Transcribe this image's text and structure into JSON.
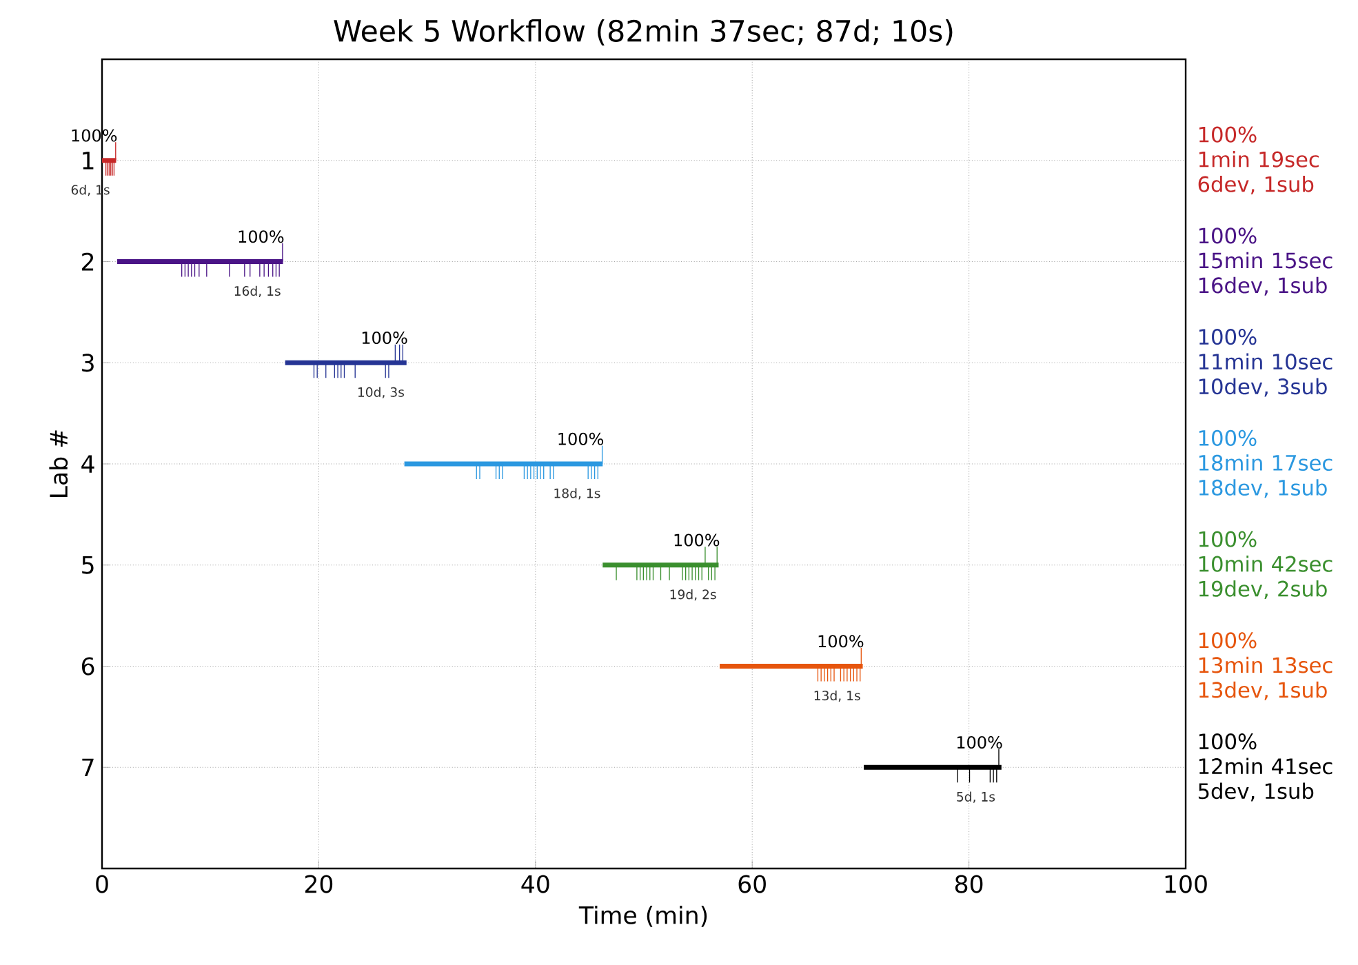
{
  "chart_data": {
    "type": "line",
    "title": "Week 5 Workflow (82min 37sec; 87d; 10s)",
    "xlabel": "Time (min)",
    "ylabel": "Lab #",
    "xlim": [
      0,
      100
    ],
    "xticks": [
      0,
      20,
      40,
      60,
      80,
      100
    ],
    "ylim": [
      8,
      0
    ],
    "yticks": [
      1,
      2,
      3,
      4,
      5,
      6,
      7
    ],
    "grid": true,
    "series": [
      {
        "name": "100%\n1min 19sec\n6dev, 1sub",
        "color": "#c62828",
        "x": [
          0.0,
          1.3
        ],
        "values": [
          1,
          1
        ]
      },
      {
        "type": "bar",
        "color": "#c62828",
        "x": [
          0.4,
          0.55,
          0.7,
          0.85,
          1.0,
          1.15
        ],
        "base": [
          1,
          1,
          1,
          1,
          1,
          1
        ],
        "values": [
          0.15,
          0.15,
          0.15,
          0.15,
          0.15,
          0.15
        ]
      },
      {
        "type": "bar",
        "color": "#c62828",
        "x": [
          1.3
        ],
        "base": [
          1
        ],
        "values": [
          -0.18
        ]
      },
      {
        "name": "100%\n15min 15sec\n16dev, 1sub",
        "color": "#4a1486",
        "x": [
          1.4,
          16.7
        ],
        "values": [
          2,
          2
        ]
      },
      {
        "type": "bar",
        "color": "#4a1486",
        "x": [
          7.4,
          7.7,
          8.0,
          8.3,
          8.6,
          9.0,
          9.7,
          11.8,
          13.2,
          13.7,
          14.6,
          15.0,
          15.4,
          15.8,
          16.1,
          16.4
        ],
        "base": [
          2,
          2,
          2,
          2,
          2,
          2,
          2,
          2,
          2,
          2,
          2,
          2,
          2,
          2,
          2,
          2
        ],
        "values": [
          0.15,
          0.15,
          0.15,
          0.15,
          0.15,
          0.15,
          0.15,
          0.15,
          0.15,
          0.15,
          0.15,
          0.15,
          0.15,
          0.15,
          0.15,
          0.15
        ]
      },
      {
        "type": "bar",
        "color": "#4a1486",
        "x": [
          16.7
        ],
        "base": [
          2
        ],
        "values": [
          -0.18
        ]
      },
      {
        "name": "100%\n11min 10sec\n10dev, 3sub",
        "color": "#253494",
        "x": [
          16.9,
          28.1
        ],
        "values": [
          3,
          3
        ]
      },
      {
        "type": "bar",
        "color": "#253494",
        "x": [
          19.6,
          19.9,
          20.7,
          21.5,
          21.8,
          22.1,
          22.4,
          23.4,
          26.2,
          26.5
        ],
        "base": [
          3,
          3,
          3,
          3,
          3,
          3,
          3,
          3,
          3,
          3
        ],
        "values": [
          0.15,
          0.15,
          0.15,
          0.15,
          0.15,
          0.15,
          0.15,
          0.15,
          0.15,
          0.15
        ]
      },
      {
        "type": "bar",
        "color": "#253494",
        "x": [
          27.1,
          27.5,
          27.8
        ],
        "base": [
          3,
          3,
          3
        ],
        "values": [
          -0.18,
          -0.18,
          -0.18
        ]
      },
      {
        "name": "100%\n18min 17sec\n18dev, 1sub",
        "color": "#2b98e0",
        "x": [
          27.9,
          46.2
        ],
        "values": [
          4,
          4
        ]
      },
      {
        "type": "bar",
        "color": "#2b98e0",
        "x": [
          34.6,
          34.9,
          36.4,
          36.7,
          37.0,
          39.0,
          39.3,
          39.6,
          39.9,
          40.2,
          40.5,
          40.8,
          41.4,
          41.7,
          44.9,
          45.2,
          45.5,
          45.8
        ],
        "base": [
          4,
          4,
          4,
          4,
          4,
          4,
          4,
          4,
          4,
          4,
          4,
          4,
          4,
          4,
          4,
          4,
          4,
          4
        ],
        "values": [
          0.15,
          0.15,
          0.15,
          0.15,
          0.15,
          0.15,
          0.15,
          0.15,
          0.15,
          0.15,
          0.15,
          0.15,
          0.15,
          0.15,
          0.15,
          0.15,
          0.15,
          0.15
        ]
      },
      {
        "type": "bar",
        "color": "#2b98e0",
        "x": [
          46.2
        ],
        "base": [
          4
        ],
        "values": [
          -0.18
        ]
      },
      {
        "name": "100%\n10min 42sec\n19dev, 2sub",
        "color": "#3a8f2e",
        "x": [
          46.2,
          56.9
        ],
        "values": [
          5,
          5
        ]
      },
      {
        "type": "bar",
        "color": "#3a8f2e",
        "x": [
          47.5,
          49.4,
          49.7,
          50.0,
          50.3,
          50.6,
          50.9,
          51.6,
          52.4,
          53.6,
          53.9,
          54.2,
          54.5,
          54.8,
          55.1,
          55.4,
          56.0,
          56.3,
          56.6
        ],
        "base": [
          5,
          5,
          5,
          5,
          5,
          5,
          5,
          5,
          5,
          5,
          5,
          5,
          5,
          5,
          5,
          5,
          5,
          5,
          5
        ],
        "values": [
          0.15,
          0.15,
          0.15,
          0.15,
          0.15,
          0.15,
          0.15,
          0.15,
          0.15,
          0.15,
          0.15,
          0.15,
          0.15,
          0.15,
          0.15,
          0.15,
          0.15,
          0.15,
          0.15
        ]
      },
      {
        "type": "bar",
        "color": "#3a8f2e",
        "x": [
          55.7,
          56.8
        ],
        "base": [
          5,
          5
        ],
        "values": [
          -0.18,
          -0.18
        ]
      },
      {
        "name": "100%\n13min 13sec\n13dev, 1sub",
        "color": "#e6550d",
        "x": [
          57.0,
          70.2
        ],
        "values": [
          6,
          6
        ]
      },
      {
        "type": "bar",
        "color": "#e6550d",
        "x": [
          66.1,
          66.4,
          66.7,
          67.0,
          67.3,
          67.6,
          68.2,
          68.5,
          68.8,
          69.1,
          69.4,
          69.7,
          70.0
        ],
        "base": [
          6,
          6,
          6,
          6,
          6,
          6,
          6,
          6,
          6,
          6,
          6,
          6,
          6
        ],
        "values": [
          0.15,
          0.15,
          0.15,
          0.15,
          0.15,
          0.15,
          0.15,
          0.15,
          0.15,
          0.15,
          0.15,
          0.15,
          0.15
        ]
      },
      {
        "type": "bar",
        "color": "#e6550d",
        "x": [
          70.1
        ],
        "base": [
          6
        ],
        "values": [
          -0.18
        ]
      },
      {
        "name": "100%\n12min 41sec\n5dev, 1sub",
        "color": "#000000",
        "x": [
          70.3,
          83.0
        ],
        "values": [
          7,
          7
        ]
      },
      {
        "type": "bar",
        "color": "#000000",
        "x": [
          79.0,
          80.1,
          82.0,
          82.3,
          82.6
        ],
        "base": [
          7,
          7,
          7,
          7,
          7
        ],
        "values": [
          0.15,
          0.15,
          0.15,
          0.15,
          0.15
        ]
      },
      {
        "type": "bar",
        "color": "#000000",
        "x": [
          82.8
        ],
        "base": [
          7
        ],
        "values": [
          -0.18
        ]
      }
    ],
    "annotations": [
      {
        "text": "100%",
        "x": 1.3,
        "y": 1
      },
      {
        "text": "6d, 1s",
        "x": 1.3,
        "y": 1
      },
      {
        "text": "100%",
        "x": 16.7,
        "y": 2
      },
      {
        "text": "16d, 1s",
        "x": 16.7,
        "y": 2
      },
      {
        "text": "100%",
        "x": 28.1,
        "y": 3
      },
      {
        "text": "10d, 3s",
        "x": 28.1,
        "y": 3
      },
      {
        "text": "100%",
        "x": 46.2,
        "y": 4
      },
      {
        "text": "18d, 1s",
        "x": 46.2,
        "y": 4
      },
      {
        "text": "100%",
        "x": 56.9,
        "y": 5
      },
      {
        "text": "19d, 2s",
        "x": 56.9,
        "y": 5
      },
      {
        "text": "100%",
        "x": 70.2,
        "y": 6
      },
      {
        "text": "13d, 1s",
        "x": 70.2,
        "y": 6
      },
      {
        "text": "100%",
        "x": 83.0,
        "y": 7
      },
      {
        "text": "5d, 1s",
        "x": 83.0,
        "y": 7
      }
    ]
  }
}
